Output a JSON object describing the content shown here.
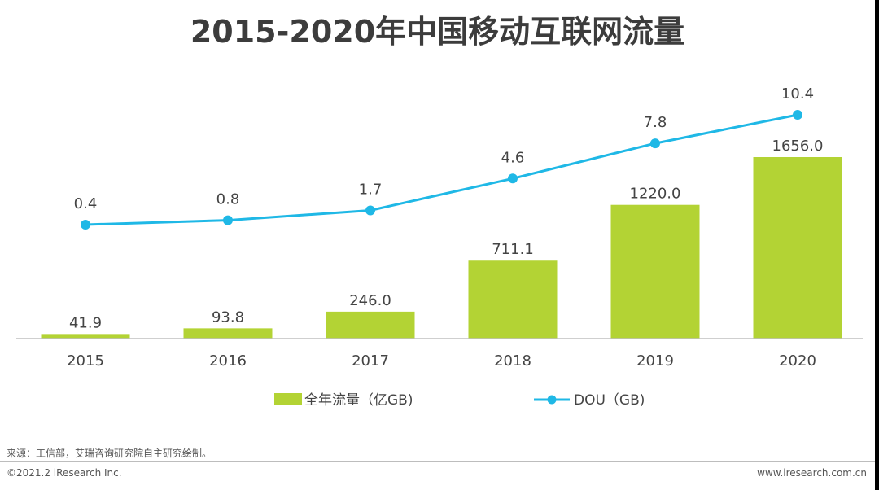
{
  "title": "2015-2020年中国移动互联网流量",
  "chart_data": {
    "type": "bar",
    "title": "2015-2020年中国移动互联网流量",
    "categories": [
      "2015",
      "2016",
      "2017",
      "2018",
      "2019",
      "2020"
    ],
    "series": [
      {
        "name": "全年流量（亿GB)",
        "type": "bar",
        "color": "#b3d334",
        "values": [
          41.9,
          93.8,
          246.0,
          711.1,
          1220.0,
          1656.0
        ],
        "labels": [
          "41.9",
          "93.8",
          "246.0",
          "711.1",
          "1220.0",
          "1656.0"
        ]
      },
      {
        "name": "DOU（GB)",
        "type": "line",
        "color": "#1fb8e6",
        "values": [
          0.4,
          0.8,
          1.7,
          4.6,
          7.8,
          10.4
        ],
        "labels": [
          "0.4",
          "0.8",
          "1.7",
          "4.6",
          "7.8",
          "10.4"
        ]
      }
    ],
    "bar_ylim": [
      0,
      1656
    ],
    "line_ylim": [
      0,
      10.4
    ],
    "grid": false,
    "legend_position": "bottom"
  },
  "footer": {
    "source": "来源：工信部，艾瑞咨询研究院自主研究绘制。",
    "copyright": "©2021.2 iResearch Inc.",
    "website": "www.iresearch.com.cn"
  }
}
